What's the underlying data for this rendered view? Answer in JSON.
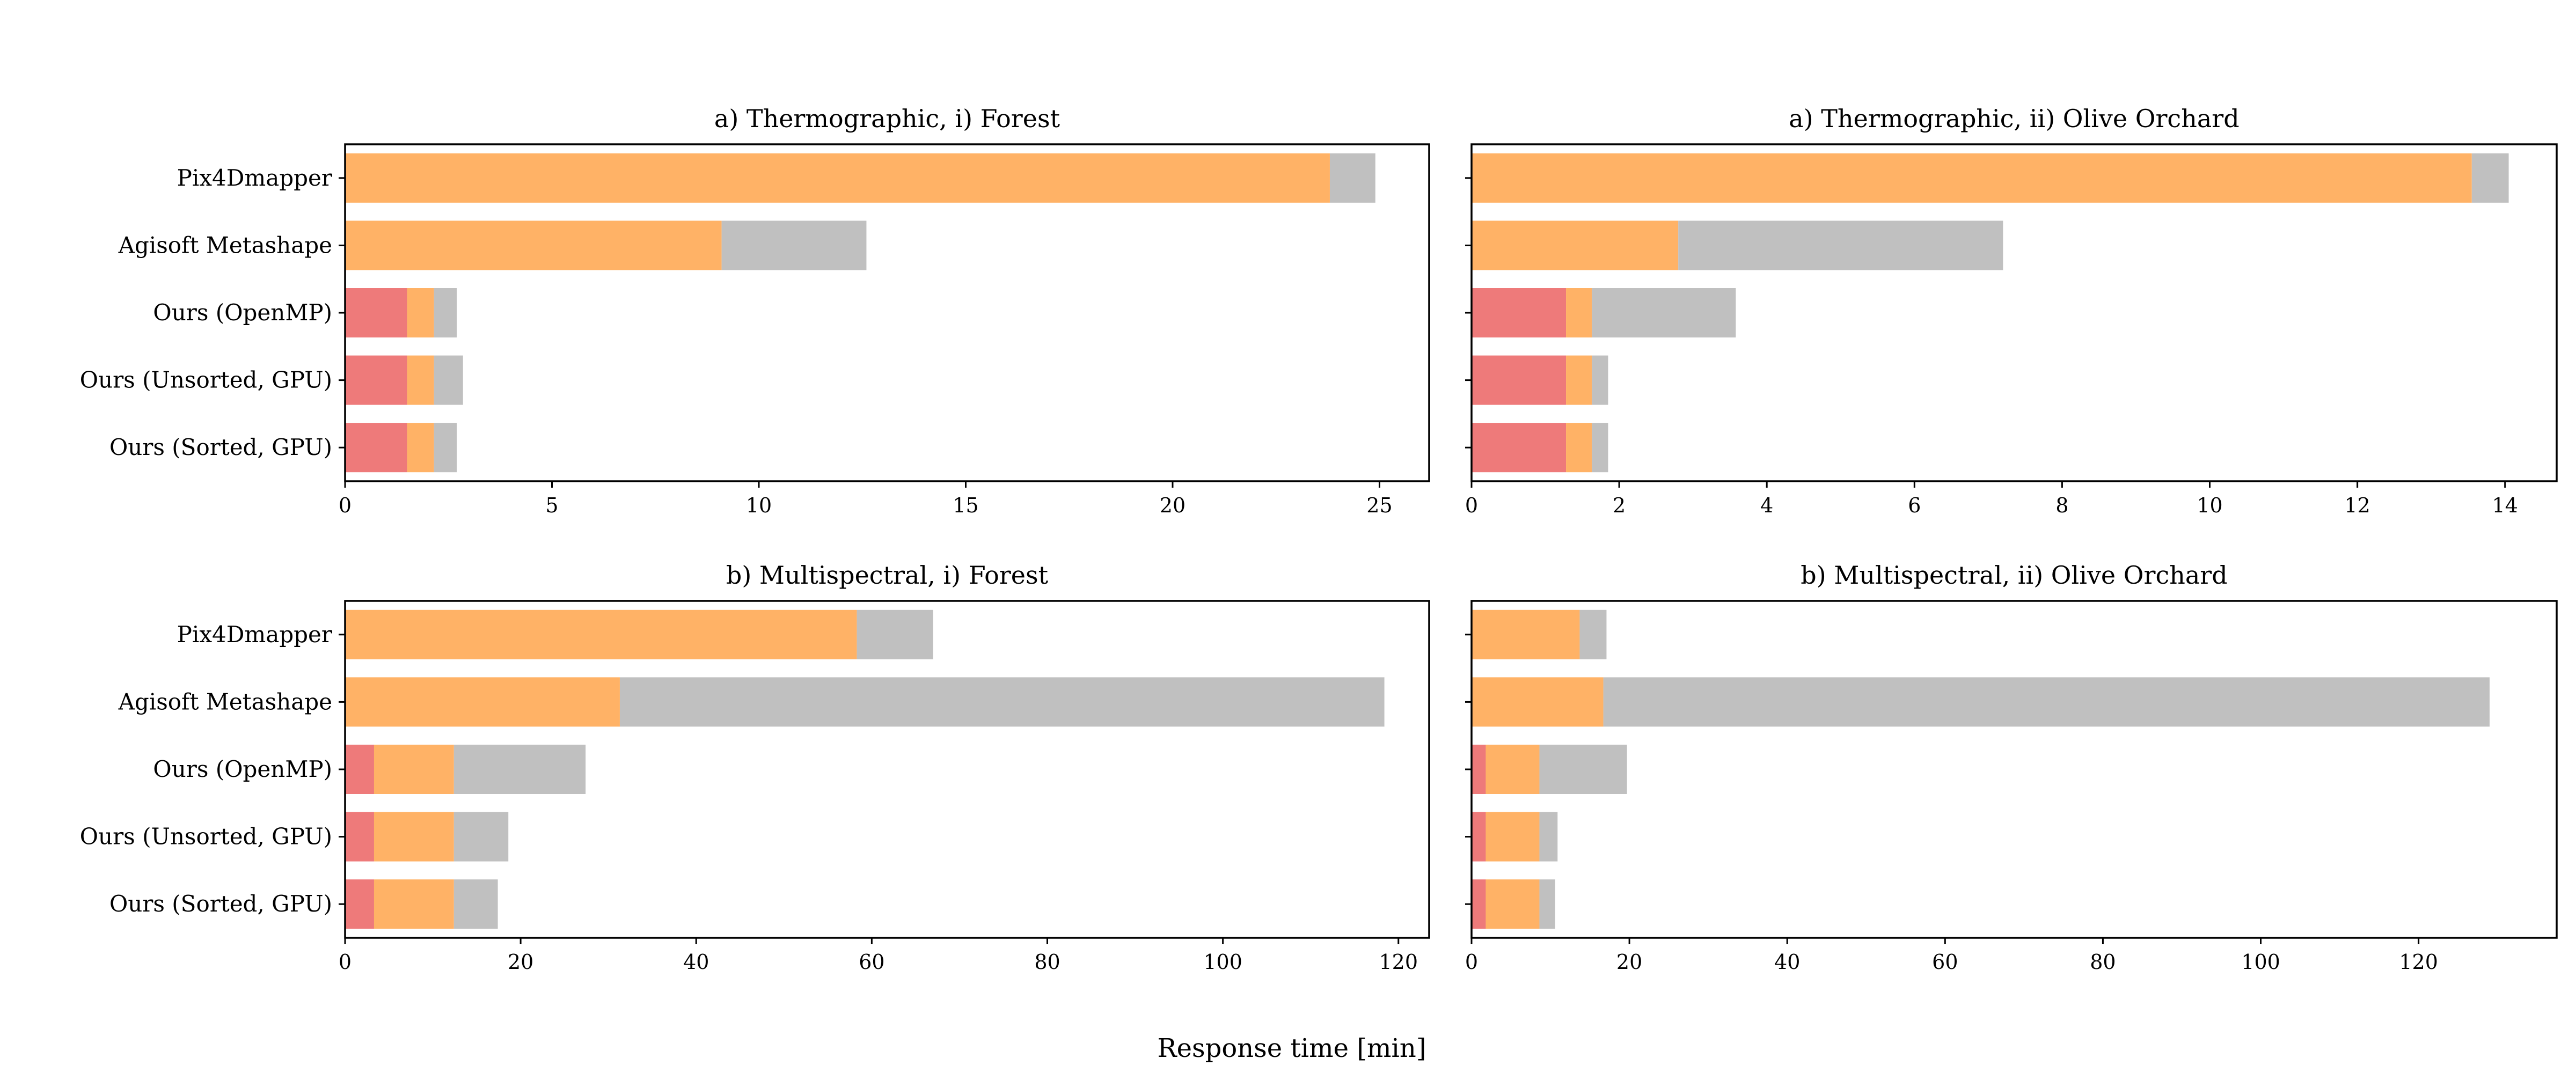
{
  "figure": {
    "xlabel": "Response time [min]",
    "segment_colors": [
      "#ee7a7a",
      "#ffb266",
      "#c0c0c0"
    ]
  },
  "chart_data": [
    {
      "type": "bar",
      "orientation": "horizontal",
      "stacked": true,
      "title": "a) Thermographic, i) Forest",
      "categories": [
        "Pix4Dmapper",
        "Agisoft Metashape",
        "Ours (OpenMP)",
        "Ours (Unsorted, GPU)",
        "Ours (Sorted, GPU)"
      ],
      "series": [
        {
          "values": [
            0,
            0,
            1.5,
            1.5,
            1.5
          ]
        },
        {
          "values": [
            23.8,
            9.1,
            0.65,
            0.65,
            0.65
          ]
        },
        {
          "values": [
            1.1,
            3.5,
            0.55,
            0.7,
            0.55
          ]
        }
      ],
      "xlim": [
        0,
        26.2
      ],
      "xticks": [
        0,
        5,
        10,
        15,
        20,
        25
      ]
    },
    {
      "type": "bar",
      "orientation": "horizontal",
      "stacked": true,
      "title": "a) Thermographic, ii) Olive Orchard",
      "categories": [
        "Pix4Dmapper",
        "Agisoft Metashape",
        "Ours (OpenMP)",
        "Ours (Unsorted, GPU)",
        "Ours (Sorted, GPU)"
      ],
      "series": [
        {
          "values": [
            0,
            0,
            1.28,
            1.28,
            1.28
          ]
        },
        {
          "values": [
            13.55,
            2.8,
            0.35,
            0.35,
            0.35
          ]
        },
        {
          "values": [
            0.5,
            4.4,
            1.95,
            0.22,
            0.22
          ]
        }
      ],
      "xlim": [
        0,
        14.7
      ],
      "xticks": [
        0,
        2,
        4,
        6,
        8,
        10,
        12,
        14
      ]
    },
    {
      "type": "bar",
      "orientation": "horizontal",
      "stacked": true,
      "title": "b) Multispectral, i) Forest",
      "categories": [
        "Pix4Dmapper",
        "Agisoft Metashape",
        "Ours (OpenMP)",
        "Ours (Unsorted, GPU)",
        "Ours (Sorted, GPU)"
      ],
      "series": [
        {
          "values": [
            0,
            0,
            3.3,
            3.3,
            3.3
          ]
        },
        {
          "values": [
            58.3,
            31.3,
            9.1,
            9.1,
            9.1
          ]
        },
        {
          "values": [
            8.7,
            87.1,
            15.0,
            6.2,
            5.0
          ]
        }
      ],
      "xlim": [
        0,
        123.5
      ],
      "xticks": [
        0,
        20,
        40,
        60,
        80,
        100,
        120
      ]
    },
    {
      "type": "bar",
      "orientation": "horizontal",
      "stacked": true,
      "title": "b) Multispectral, ii) Olive Orchard",
      "categories": [
        "Pix4Dmapper",
        "Agisoft Metashape",
        "Ours (OpenMP)",
        "Ours (Unsorted, GPU)",
        "Ours (Sorted, GPU)"
      ],
      "series": [
        {
          "values": [
            0,
            0,
            1.8,
            1.8,
            1.8
          ]
        },
        {
          "values": [
            13.7,
            16.7,
            6.8,
            6.8,
            6.8
          ]
        },
        {
          "values": [
            3.4,
            112.3,
            11.1,
            2.3,
            2.0
          ]
        }
      ],
      "xlim": [
        0,
        137.5
      ],
      "xticks": [
        0,
        20,
        40,
        60,
        80,
        100,
        120
      ]
    }
  ]
}
